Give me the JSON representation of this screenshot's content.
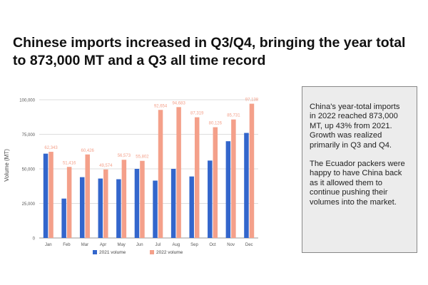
{
  "title": "Chinese imports increased in Q3/Q4, bringing the year total to 873,000 MT and a Q3 all time record",
  "note": {
    "p1": "China's year-total imports in 2022 reached 873,000 MT, up 43% from 2021. Growth was realized primarily in Q3 and Q4.",
    "p2": "The Ecuador packers were happy to have China back as it allowed them to continue pushing their volumes into the market."
  },
  "chart_data": {
    "type": "bar",
    "title": "",
    "xlabel": "",
    "ylabel": "Volume (MT)",
    "ylim": [
      0,
      100000
    ],
    "yticks": [
      0,
      25000,
      50000,
      75000,
      100000
    ],
    "ytick_labels": [
      "0",
      "25,000",
      "50,000",
      "75,000",
      "100,000"
    ],
    "grid": true,
    "legend_position": "bottom",
    "categories": [
      "Jan",
      "Feb",
      "Mar",
      "Apr",
      "May",
      "Jun",
      "Jul",
      "Aug",
      "Sep",
      "Oct",
      "Nov",
      "Dec"
    ],
    "series": [
      {
        "name": "2021 volume",
        "color": "#3366cc",
        "values": [
          61000,
          28500,
          44000,
          43000,
          42500,
          50000,
          41500,
          50000,
          44500,
          56000,
          70000,
          76000
        ],
        "labels": []
      },
      {
        "name": "2022 volume",
        "color": "#f4a08a",
        "values": [
          62343,
          51416,
          60426,
          49574,
          56573,
          55802,
          92654,
          94683,
          87319,
          80126,
          85731,
          97138
        ],
        "labels": [
          "62,343",
          "51,416",
          "60,426",
          "49,574",
          "56,573",
          "55,802",
          "92,654",
          "94,683",
          "87,319",
          "80,126",
          "85,731",
          "97,138"
        ]
      }
    ]
  }
}
